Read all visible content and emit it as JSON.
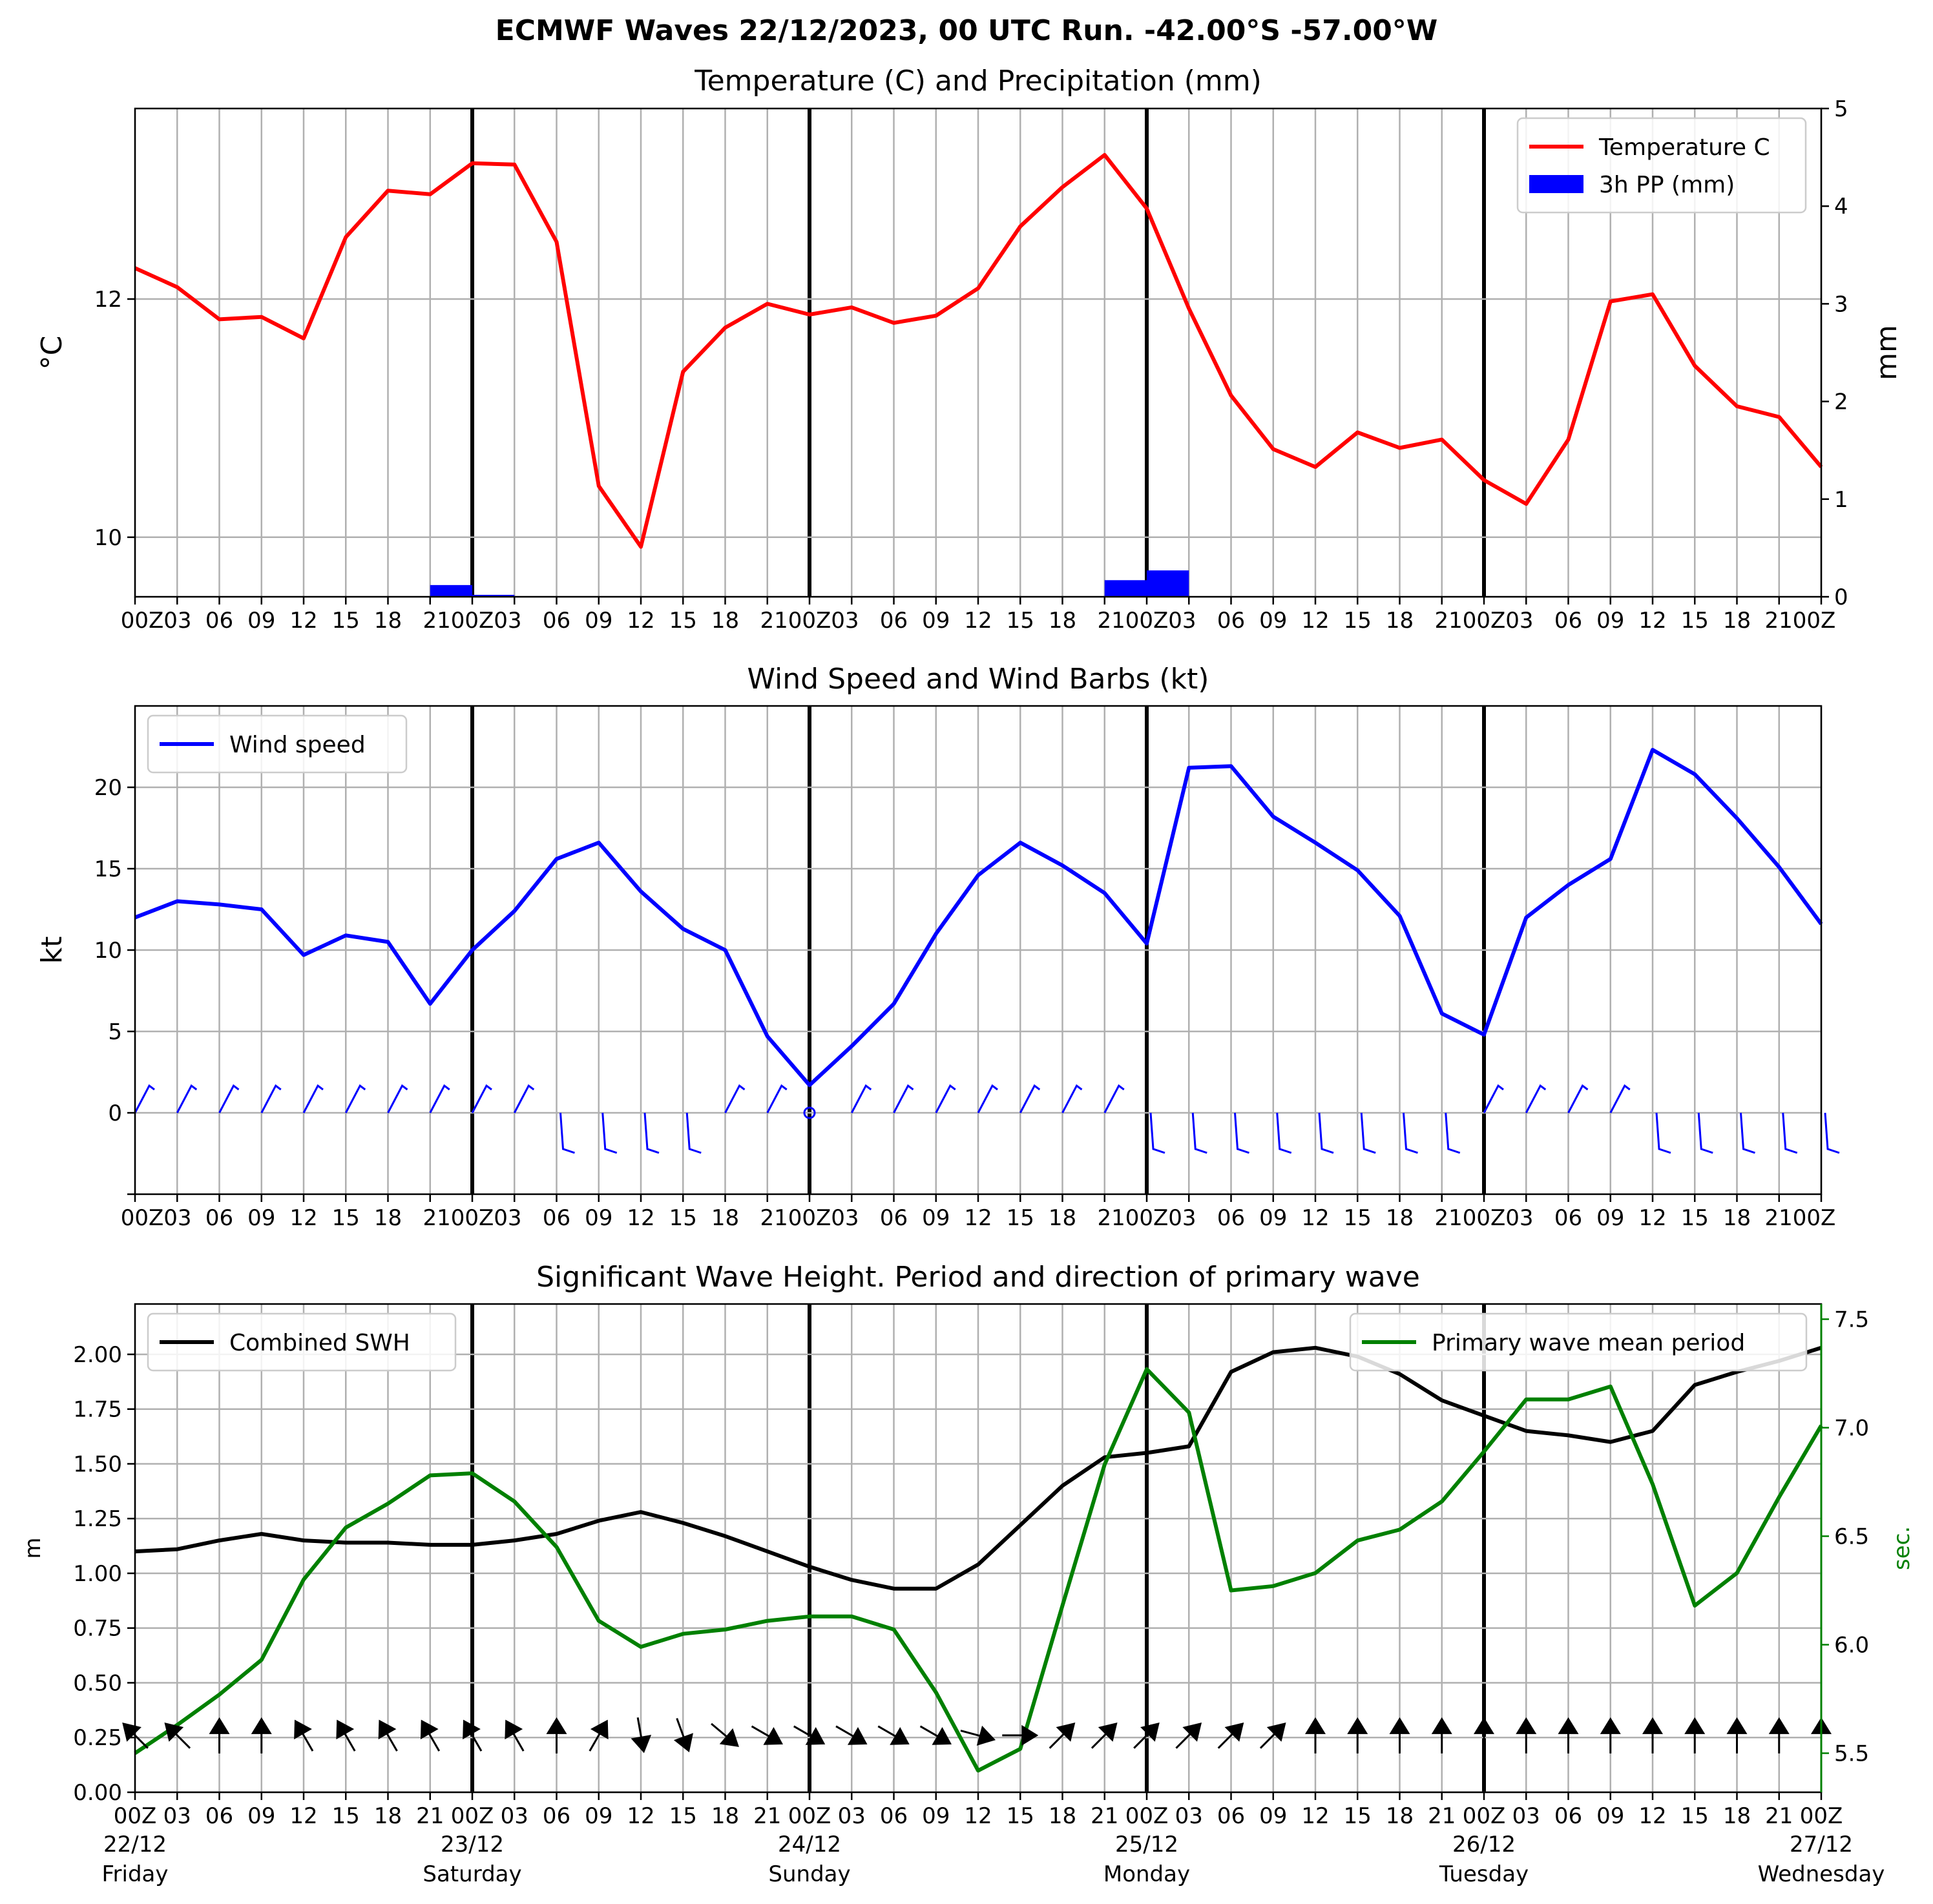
{
  "suptitle": "ECMWF Waves 22/12/2023, 00 UTC Run. -42.00°S -57.00°W",
  "x_hour_labels": [
    "00Z",
    "03",
    "06",
    "09",
    "12",
    "15",
    "18",
    "21",
    "00Z",
    "03",
    "06",
    "09",
    "12",
    "15",
    "18",
    "21",
    "00Z",
    "03",
    "06",
    "09",
    "12",
    "15",
    "18",
    "21",
    "00Z",
    "03",
    "06",
    "09",
    "12",
    "15",
    "18",
    "21",
    "00Z",
    "03",
    "06",
    "09",
    "12",
    "15",
    "18",
    "21",
    "00Z"
  ],
  "top_hour_labels": [
    "00Z03",
    "06",
    "09",
    "12",
    "15",
    "18",
    "2100Z03",
    "06",
    "09",
    "12",
    "15",
    "18",
    "2100Z03",
    "06",
    "09",
    "12",
    "15",
    "18",
    "2100Z03",
    "06",
    "09",
    "12",
    "15",
    "18",
    "2100Z03",
    "06",
    "09",
    "12",
    "15",
    "18",
    "2100Z"
  ],
  "day_labels": [
    {
      "date": "22/12",
      "day": "Friday"
    },
    {
      "date": "23/12",
      "day": "Saturday"
    },
    {
      "date": "24/12",
      "day": "Sunday"
    },
    {
      "date": "25/12",
      "day": "Monday"
    },
    {
      "date": "26/12",
      "day": "Tuesday"
    },
    {
      "date": "27/12",
      "day": "Wednesday"
    }
  ],
  "chart_data": [
    {
      "type": "line",
      "title": "Temperature (C) and Precipitation (mm)",
      "ylabel": "°C",
      "ylabel_right": "mm",
      "ylim": [
        9.5,
        13.6
      ],
      "ylim_right": [
        0,
        5
      ],
      "yticks": [
        10,
        12
      ],
      "yticks_right": [
        0,
        1,
        2,
        3,
        4,
        5
      ],
      "legend": "top-right",
      "grid": true,
      "x_hours": [
        0,
        3,
        6,
        9,
        12,
        15,
        18,
        21,
        24,
        27,
        30,
        33,
        36,
        39,
        42,
        45,
        48,
        51,
        54,
        57,
        60,
        63,
        66,
        69,
        72,
        75,
        78,
        81,
        84,
        87,
        90,
        93,
        96,
        99,
        102,
        105,
        108,
        111,
        114,
        117,
        120
      ],
      "series": [
        {
          "name": "Temperature C",
          "color": "#ff0000",
          "values": [
            12.26,
            12.1,
            11.83,
            11.85,
            11.67,
            12.52,
            12.91,
            12.88,
            13.14,
            13.13,
            12.48,
            10.43,
            9.92,
            11.39,
            11.76,
            11.96,
            11.87,
            11.93,
            11.8,
            11.86,
            12.09,
            12.61,
            12.94,
            13.21,
            12.76,
            11.92,
            11.19,
            10.74,
            10.59,
            10.88,
            10.75,
            10.82,
            10.48,
            10.28,
            10.82,
            11.98,
            12.04,
            11.44,
            11.1,
            11.01,
            10.59
          ]
        },
        {
          "name": "3h PP (mm)",
          "color": "#0000ff",
          "kind": "bar",
          "bars": [
            {
              "h": 22.5,
              "v": 0.12
            },
            {
              "h": 25.5,
              "v": 0.02
            },
            {
              "h": 70.5,
              "v": 0.17
            },
            {
              "h": 73.5,
              "v": 0.27
            }
          ]
        }
      ]
    },
    {
      "type": "line",
      "title": "Wind Speed and Wind Barbs (kt)",
      "ylabel": "kt",
      "ylim": [
        -5,
        25
      ],
      "yticks": [
        0,
        5,
        10,
        15,
        20
      ],
      "legend": "top-left",
      "grid": true,
      "series": [
        {
          "name": "Wind speed",
          "color": "#0000ff",
          "values": [
            12.0,
            13.0,
            12.8,
            12.5,
            9.7,
            10.9,
            10.5,
            6.7,
            10.0,
            12.4,
            15.6,
            16.6,
            13.6,
            11.3,
            10.0,
            4.7,
            1.7,
            4.1,
            6.7,
            11.0,
            14.6,
            16.6,
            15.2,
            13.5,
            10.4,
            21.2,
            21.3,
            18.2,
            16.6,
            14.9,
            12.1,
            6.1,
            4.8,
            12.0,
            14.0,
            15.6,
            22.3,
            20.8,
            18.1,
            15.1,
            11.6
          ]
        }
      ],
      "barbs_dir": [
        1,
        1,
        1,
        1,
        1,
        1,
        1,
        1,
        1,
        1,
        -1,
        -1,
        -1,
        -1,
        1,
        1,
        0,
        1,
        1,
        1,
        1,
        1,
        1,
        1,
        -1,
        -1,
        -1,
        -1,
        -1,
        -1,
        -1,
        -1,
        1,
        1,
        1,
        1,
        -1,
        -1,
        -1,
        -1,
        -1
      ]
    },
    {
      "type": "line",
      "title": "Significant Wave Height. Period and direction of primary wave",
      "ylabel": "m",
      "ylabel_right": "sec.",
      "ylim": [
        0,
        2.23
      ],
      "ylim_right": [
        5.32,
        7.57
      ],
      "yticks": [
        "0.00",
        "0.25",
        "0.50",
        "0.75",
        "1.00",
        "1.25",
        "1.50",
        "1.75",
        "2.00"
      ],
      "yticks_right": [
        "5.5",
        "6.0",
        "6.5",
        "7.0",
        "7.5"
      ],
      "grid": true,
      "series": [
        {
          "name": "Combined SWH",
          "color": "#000000",
          "legend": "top-left",
          "values": [
            1.1,
            1.11,
            1.15,
            1.18,
            1.15,
            1.14,
            1.14,
            1.13,
            1.13,
            1.15,
            1.18,
            1.24,
            1.28,
            1.23,
            1.17,
            1.1,
            1.03,
            0.97,
            0.93,
            0.93,
            1.04,
            1.22,
            1.4,
            1.53,
            1.55,
            1.58,
            1.92,
            2.01,
            2.03,
            1.99,
            1.91,
            1.79,
            1.72,
            1.65,
            1.63,
            1.6,
            1.65,
            1.86,
            1.92,
            1.97,
            2.03
          ]
        },
        {
          "name": "Primary wave mean period",
          "color": "#008000",
          "legend": "top-right",
          "axis": "right",
          "values": [
            5.5,
            5.63,
            5.77,
            5.93,
            6.3,
            6.54,
            6.65,
            6.78,
            6.79,
            6.66,
            6.45,
            6.11,
            5.99,
            6.05,
            6.07,
            6.11,
            6.13,
            6.13,
            6.07,
            5.78,
            5.42,
            5.52,
            6.18,
            6.83,
            7.27,
            7.07,
            6.25,
            6.27,
            6.33,
            6.48,
            6.53,
            6.66,
            6.89,
            7.13,
            7.13,
            7.19,
            6.74,
            6.18,
            6.33,
            6.68,
            7.01
          ]
        }
      ],
      "wave_dir_deg": [
        315,
        315,
        0,
        0,
        330,
        330,
        330,
        330,
        330,
        330,
        0,
        30,
        170,
        160,
        130,
        120,
        120,
        120,
        120,
        120,
        105,
        90,
        45,
        45,
        45,
        45,
        45,
        45,
        0,
        0,
        0,
        0,
        0,
        0,
        0,
        0,
        0,
        0,
        0,
        0,
        0
      ]
    }
  ]
}
